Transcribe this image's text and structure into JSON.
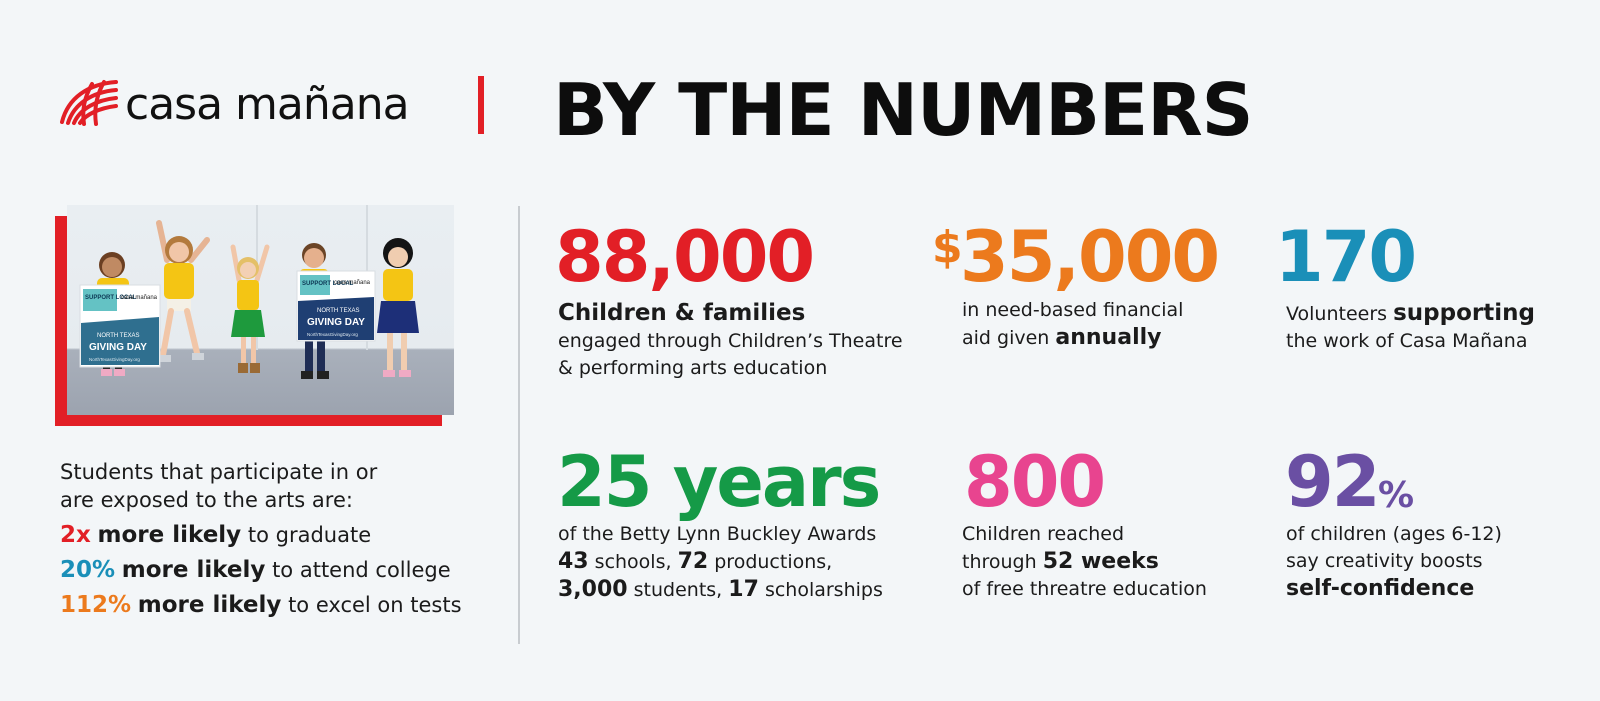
{
  "brand": {
    "name": "casa mañana",
    "accent": "#e21f26"
  },
  "header": {
    "title": "BY THE NUMBERS"
  },
  "photo": {
    "sign_left": {
      "top": "SUPPORT LOCAL",
      "brand": "casa mañana",
      "line1": "NORTH TEXAS",
      "line2": "GIVING DAY",
      "url": "NorthTexasGivingDay.org"
    },
    "sign_right": {
      "top": "SUPPORT LOCAL",
      "brand": "casa mañana",
      "line1": "NORTH TEXAS",
      "line2": "GIVING DAY",
      "url": "NorthTexasGivingDay.org"
    }
  },
  "arts": {
    "intro1": "Students that participate in or",
    "intro2": "are exposed to the arts are:",
    "items": [
      {
        "value": "2x",
        "bold": "more likely",
        "rest": "to graduate",
        "color": "#e21f26"
      },
      {
        "value": "20%",
        "bold": "more likely",
        "rest": "to attend college",
        "color": "#1a8fb8"
      },
      {
        "value": "112%",
        "bold": "more likely",
        "rest": "to excel on tests",
        "color": "#ec7a1d"
      }
    ]
  },
  "stats": {
    "children": {
      "value": "88,000",
      "color": "#e21f26",
      "label": "Children & families",
      "line1": "engaged through Children’s Theatre",
      "line2": "& performing arts education"
    },
    "aid": {
      "currency": "$",
      "value": "35,000",
      "color": "#ec7a1d",
      "line1": "in need-based financial",
      "line2_pre": "aid given",
      "line2_bold": "annually"
    },
    "volunteers": {
      "value": "170",
      "color": "#1a8fb8",
      "line1_pre": "Volunteers",
      "line1_bold": "supporting",
      "line2": "the work of Casa Mañana"
    },
    "years": {
      "value": "25 years",
      "color": "#159a47",
      "line1": "of the Betty Lynn Buckley Awards",
      "schools_n": "43",
      "schools": "schools,",
      "prod_n": "72",
      "prod": "productions,",
      "students_n": "3,000",
      "students": "students,",
      "schol_n": "17",
      "schol": "scholarships"
    },
    "reached": {
      "value": "800",
      "color": "#e8448f",
      "line1": "Children reached",
      "line2_pre": "through",
      "line2_bold": "52 weeks",
      "line3": "of free threatre education"
    },
    "confidence": {
      "value": "92",
      "pct": "%",
      "color": "#6a4fa3",
      "line1": "of children (ages 6-12)",
      "line2": "say creativity boosts",
      "line3_bold": "self-confidence"
    }
  }
}
